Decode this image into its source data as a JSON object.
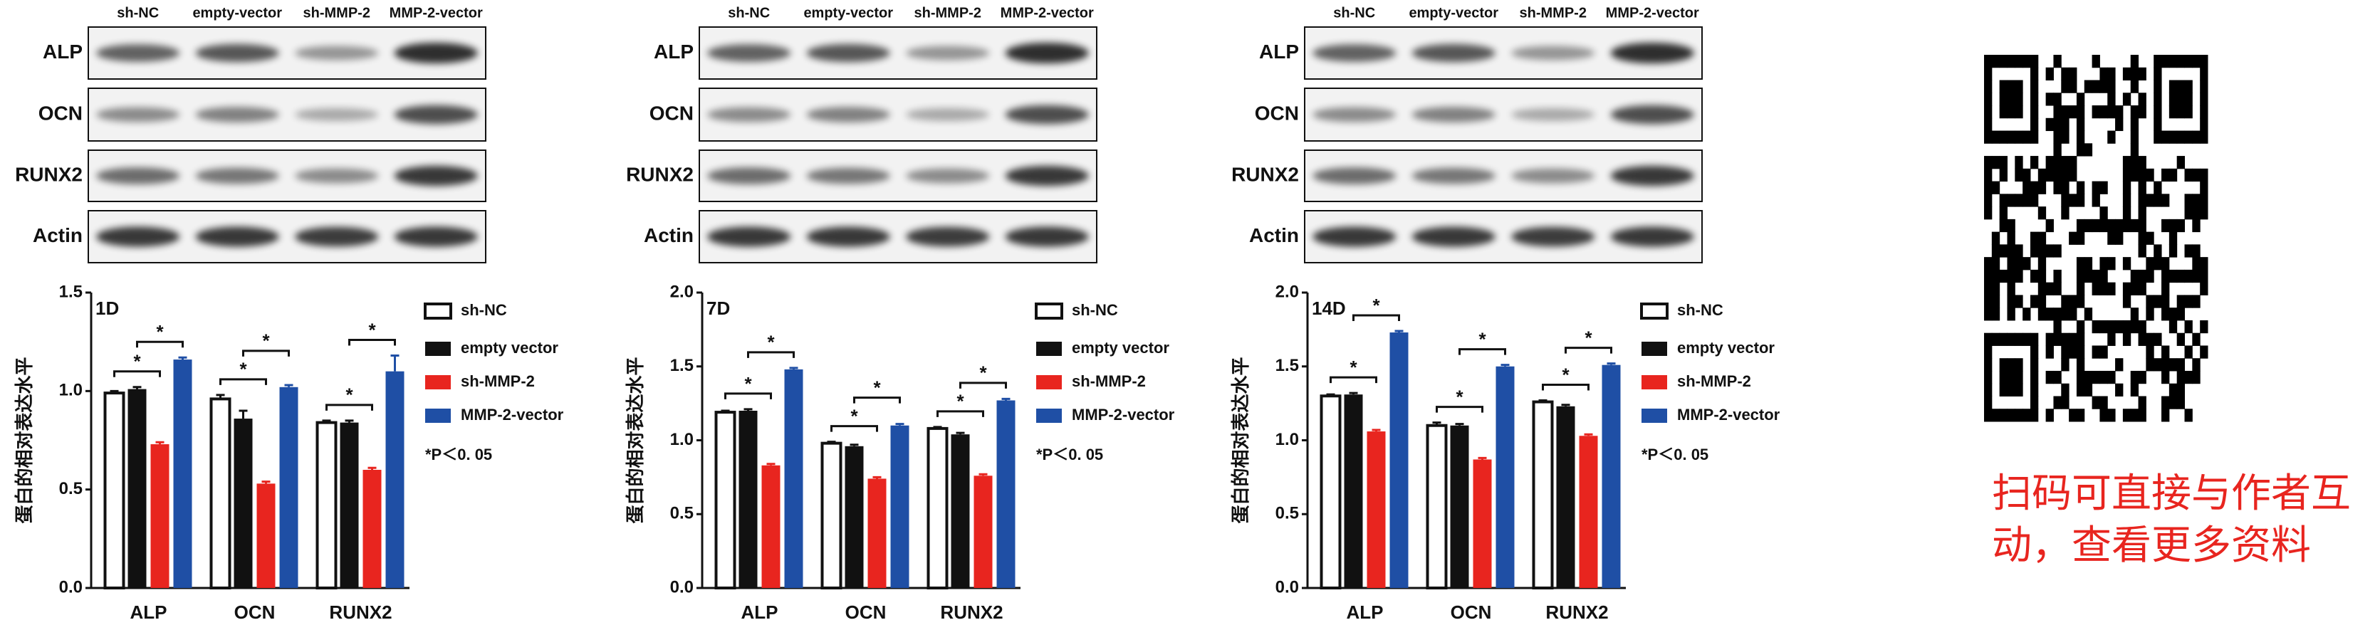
{
  "chart_data": [
    {
      "type": "bar",
      "panel_label": "1D",
      "ylabel": "蛋白的相对表达水平",
      "categories": [
        "ALP",
        "OCN",
        "RUNX2"
      ],
      "series": [
        {
          "name": "sh-NC",
          "color": "#ffffff",
          "values": [
            0.99,
            0.96,
            0.84
          ],
          "errors": [
            0.01,
            0.02,
            0.01
          ]
        },
        {
          "name": "empty vector",
          "color": "#111111",
          "values": [
            1.01,
            0.86,
            0.84
          ],
          "errors": [
            0.01,
            0.04,
            0.01
          ]
        },
        {
          "name": "sh-MMP-2",
          "color": "#e8251f",
          "values": [
            0.73,
            0.53,
            0.6
          ],
          "errors": [
            0.01,
            0.01,
            0.01
          ]
        },
        {
          "name": "MMP-2-vector",
          "color": "#1f4fa5",
          "values": [
            1.16,
            1.02,
            1.1
          ],
          "errors": [
            0.01,
            0.01,
            0.08
          ]
        }
      ],
      "ylim": [
        0,
        1.5
      ],
      "yticks": [
        {
          "value": 0,
          "label": "0.0"
        },
        0.5,
        {
          "value": 1,
          "label": "1.0"
        },
        1.5
      ],
      "significance": "*",
      "note": "*P＜0. 05"
    },
    {
      "type": "bar",
      "panel_label": "7D",
      "ylabel": "蛋白的相对表达水平",
      "categories": [
        "ALP",
        "OCN",
        "RUNX2"
      ],
      "series": [
        {
          "name": "sh-NC",
          "color": "#ffffff",
          "values": [
            1.19,
            0.98,
            1.08
          ],
          "errors": [
            0.01,
            0.01,
            0.01
          ]
        },
        {
          "name": "empty vector",
          "color": "#111111",
          "values": [
            1.2,
            0.96,
            1.04
          ],
          "errors": [
            0.01,
            0.01,
            0.01
          ]
        },
        {
          "name": "sh-MMP-2",
          "color": "#e8251f",
          "values": [
            0.83,
            0.74,
            0.76
          ],
          "errors": [
            0.01,
            0.01,
            0.01
          ]
        },
        {
          "name": "MMP-2-vector",
          "color": "#1f4fa5",
          "values": [
            1.48,
            1.1,
            1.27
          ],
          "errors": [
            0.01,
            0.01,
            0.01
          ]
        }
      ],
      "ylim": [
        0,
        2
      ],
      "yticks": [
        {
          "value": 0,
          "label": "0.0"
        },
        0.5,
        {
          "value": 1,
          "label": "1.0"
        },
        1.5,
        {
          "value": 2,
          "label": "2.0"
        }
      ],
      "significance": "*",
      "note": "*P＜0. 05"
    },
    {
      "type": "bar",
      "panel_label": "14D",
      "ylabel": "蛋白的相对表达水平",
      "categories": [
        "ALP",
        "OCN",
        "RUNX2"
      ],
      "series": [
        {
          "name": "sh-NC",
          "color": "#ffffff",
          "values": [
            1.3,
            1.1,
            1.26
          ],
          "errors": [
            0.01,
            0.02,
            0.01
          ]
        },
        {
          "name": "empty vector",
          "color": "#111111",
          "values": [
            1.31,
            1.1,
            1.23
          ],
          "errors": [
            0.01,
            0.01,
            0.01
          ]
        },
        {
          "name": "sh-MMP-2",
          "color": "#e8251f",
          "values": [
            1.06,
            0.87,
            1.03
          ],
          "errors": [
            0.01,
            0.01,
            0.01
          ]
        },
        {
          "name": "MMP-2-vector",
          "color": "#1f4fa5",
          "values": [
            1.73,
            1.5,
            1.51
          ],
          "errors": [
            0.01,
            0.01,
            0.01
          ]
        }
      ],
      "ylim": [
        0,
        2
      ],
      "yticks": [
        {
          "value": 0,
          "label": "0.0"
        },
        0.5,
        {
          "value": 1,
          "label": "1.0"
        },
        1.5,
        {
          "value": 2,
          "label": "2.0"
        }
      ],
      "significance": "*",
      "note": "*P＜0. 05"
    }
  ],
  "blots": {
    "lanes": [
      "sh-NC",
      "empty-vector",
      "sh-MMP-2",
      "MMP-2-vector"
    ],
    "rows": [
      "ALP",
      "OCN",
      "RUNX2",
      "Actin"
    ]
  },
  "caption": [
    "扫码可直接与作者互",
    "动，查看更多资料"
  ]
}
